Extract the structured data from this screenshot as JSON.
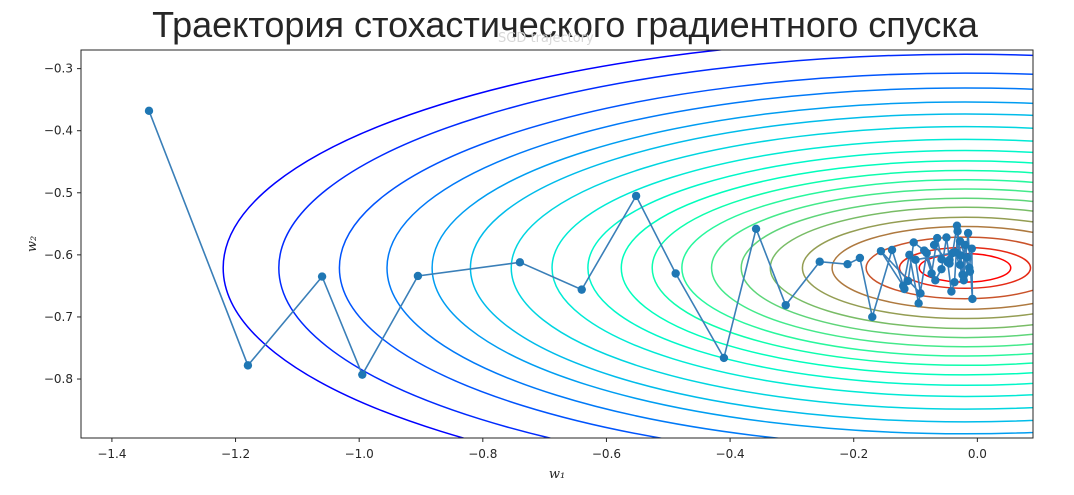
{
  "slide_title": "Траектория стохастического градиентного спуска",
  "chart_data": {
    "type": "line",
    "title": "SGD trajectory",
    "xlabel": "w₁",
    "ylabel": "w₂",
    "xlim": [
      -1.45,
      0.09
    ],
    "ylim": [
      -0.895,
      -0.27
    ],
    "xticks": [
      -1.4,
      -1.2,
      -1.0,
      -0.8,
      -0.6,
      -0.4,
      -0.2,
      0.0
    ],
    "xtick_labels": [
      "−1.4",
      "−1.2",
      "−1.0",
      "−0.8",
      "−0.6",
      "−0.4",
      "−0.2",
      "0.0"
    ],
    "yticks": [
      -0.3,
      -0.4,
      -0.5,
      -0.6,
      -0.7,
      -0.8
    ],
    "ytick_labels": [
      "−0.3",
      "−0.4",
      "−0.5",
      "−0.6",
      "−0.7",
      "−0.8"
    ],
    "grid": false,
    "colors": {
      "trajectory": "#3a7fb8",
      "point": "#1f77b4"
    },
    "contours": {
      "center": [
        -0.02,
        -0.621
      ],
      "colormap": "rainbow",
      "levels": 20,
      "semi_axes_w1": [
        0.074,
        0.106,
        0.16,
        0.215,
        0.263,
        0.315,
        0.362,
        0.41,
        0.458,
        0.506,
        0.556,
        0.61,
        0.668,
        0.734,
        0.8,
        0.862,
        0.935,
        1.012,
        1.11,
        1.2
      ],
      "aspect_w2_over_w1": 0.31
    },
    "series": [
      {
        "x": [
          -1.34,
          -1.18,
          -1.06,
          -0.995,
          -0.905,
          -0.74,
          -0.64,
          -0.552,
          -0.488,
          -0.41,
          -0.358,
          -0.31,
          -0.255,
          -0.21,
          -0.19,
          -0.17,
          -0.138,
          -0.118,
          -0.112,
          -0.103,
          -0.086,
          -0.074,
          -0.065,
          -0.058,
          -0.048,
          -0.042,
          -0.037,
          -0.032,
          -0.027,
          -0.024,
          -0.02,
          -0.017,
          -0.013,
          -0.009,
          -0.008,
          -0.015,
          -0.022,
          -0.028,
          -0.033,
          -0.04,
          -0.045,
          -0.05,
          -0.058,
          -0.068,
          -0.082,
          -0.095,
          -0.11,
          -0.12,
          -0.156,
          -0.092,
          -0.1,
          -0.035,
          -0.022,
          -0.012,
          -0.028,
          -0.045,
          -0.07
        ],
        "y": [
          -0.368,
          -0.778,
          -0.635,
          -0.793,
          -0.634,
          -0.612,
          -0.656,
          -0.505,
          -0.63,
          -0.766,
          -0.558,
          -0.681,
          -0.611,
          -0.615,
          -0.605,
          -0.7,
          -0.592,
          -0.655,
          -0.642,
          -0.58,
          -0.593,
          -0.63,
          -0.573,
          -0.607,
          -0.612,
          -0.659,
          -0.644,
          -0.562,
          -0.601,
          -0.632,
          -0.584,
          -0.604,
          -0.621,
          -0.59,
          -0.671,
          -0.565,
          -0.633,
          -0.616,
          -0.553,
          -0.597,
          -0.608,
          -0.572,
          -0.623,
          -0.641,
          -0.597,
          -0.678,
          -0.6,
          -0.65,
          -0.594,
          -0.662,
          -0.608,
          -0.596,
          -0.641,
          -0.627,
          -0.578,
          -0.614,
          -0.584
        ]
      }
    ]
  }
}
